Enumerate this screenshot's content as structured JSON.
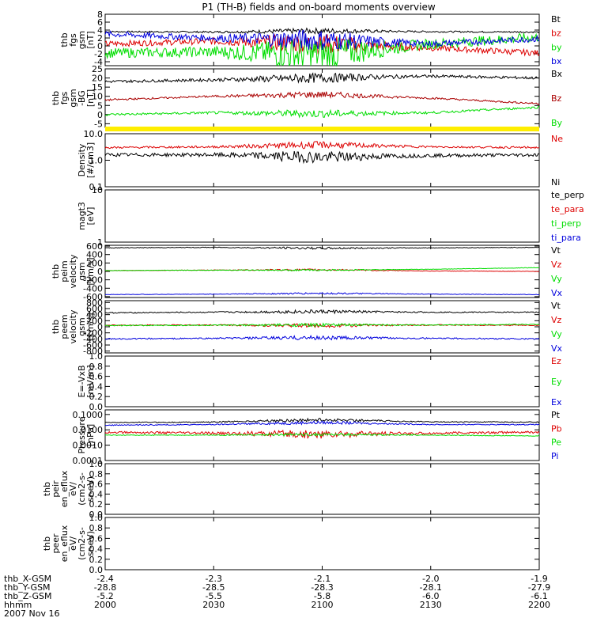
{
  "title": "P1 (TH-B) fields and on-board moments overview",
  "colors": {
    "black": "#000000",
    "red": "#dd0000",
    "darkred": "#aa0000",
    "green": "#00dd00",
    "blue": "#0000dd",
    "yellow": "#ffee00"
  },
  "chart_data": [
    {
      "type": "line",
      "ylabel": [
        "thb",
        "fgs",
        "gsm",
        "[nT]"
      ],
      "ylim": [
        -5,
        8
      ],
      "yscale": "linear",
      "yticks": [
        "8",
        "6",
        "4",
        "2",
        "0",
        "-2",
        "-4"
      ],
      "yticks_values": [
        8,
        6,
        4,
        2,
        0,
        -2,
        -4
      ],
      "series": [
        {
          "name": "Bt",
          "color": "#000000",
          "base": 3.6,
          "amp": 0.4,
          "trend": [
            3.6,
            3.5,
            3.8,
            3.6,
            3.5
          ]
        },
        {
          "name": "bz",
          "color": "#dd0000",
          "base": 0.5,
          "amp": 1.5,
          "trend": [
            0.5,
            1.2,
            0.5,
            -0.5,
            -1.8
          ]
        },
        {
          "name": "by",
          "color": "#00dd00",
          "base": -1.5,
          "amp": 2.5,
          "trend": [
            -1.8,
            -1.5,
            -2.2,
            0.5,
            2.2
          ]
        },
        {
          "name": "bx",
          "color": "#0000dd",
          "base": 2.0,
          "amp": 1.5,
          "trend": [
            3.0,
            2.0,
            1.5,
            0.5,
            1.8
          ]
        }
      ]
    },
    {
      "type": "line",
      "ylabel": [
        "thb",
        "fgs",
        "gsm",
        "-BG",
        "[nT]"
      ],
      "ylim": [
        -7,
        25
      ],
      "yscale": "linear",
      "yticks": [
        "25",
        "20",
        "15",
        "10",
        "5",
        "0",
        "-5"
      ],
      "yticks_values": [
        25,
        20,
        15,
        10,
        5,
        0,
        -5
      ],
      "series": [
        {
          "name": "Bx",
          "color": "#000000",
          "trend": [
            18,
            19,
            20,
            21,
            20
          ],
          "amp": 1.5
        },
        {
          "name": "Bz",
          "color": "#aa0000",
          "trend": [
            8,
            10,
            11,
            9,
            6
          ],
          "amp": 1.0
        },
        {
          "name": "By",
          "color": "#00dd00",
          "trend": [
            0,
            1,
            0.5,
            1,
            4
          ],
          "amp": 1.2
        }
      ]
    },
    {
      "type": "line",
      "ylabel": [
        "Density",
        "[#/cm3]"
      ],
      "ylim": [
        0.1,
        10
      ],
      "yscale": "log",
      "yticks": [
        "10.0",
        "1.0",
        "0.1"
      ],
      "yticks_values": [
        10,
        1,
        0.1
      ],
      "series": [
        {
          "name": "Ne",
          "color": "#dd0000",
          "trend": [
            3.0,
            3.2,
            3.8,
            3.2,
            3.0
          ],
          "amp": 0.15
        },
        {
          "name": "Ni",
          "color": "#000000",
          "trend": [
            1.6,
            1.6,
            1.3,
            1.5,
            1.6
          ],
          "amp": 0.25
        }
      ]
    },
    {
      "type": "line",
      "ylabel": [
        "magt3",
        "[eV]"
      ],
      "ylim": [
        1,
        10
      ],
      "yscale": "log",
      "yticks": [
        "10",
        "1"
      ],
      "yticks_values": [
        10,
        1
      ],
      "series": [
        {
          "name": "te_perp",
          "color": "#000000",
          "values": []
        },
        {
          "name": "te_para",
          "color": "#dd0000",
          "values": []
        },
        {
          "name": "ti_perp",
          "color": "#00dd00",
          "values": []
        },
        {
          "name": "ti_para",
          "color": "#0000dd",
          "values": []
        }
      ]
    },
    {
      "type": "line",
      "ylabel": [
        "thb",
        "peim",
        "velocity",
        "gsm",
        "[km/s]"
      ],
      "ylim": [
        -620,
        620
      ],
      "yscale": "linear",
      "yticks": [
        "600",
        "400",
        "200",
        "0",
        "-200",
        "-400",
        "-600"
      ],
      "yticks_values": [
        600,
        400,
        200,
        0,
        -200,
        -400,
        -600
      ],
      "series": [
        {
          "name": "Vt",
          "color": "#000000",
          "trend": [
            560,
            570,
            550,
            560,
            570
          ],
          "amp": 15
        },
        {
          "name": "Vz",
          "color": "#dd0000",
          "trend": [
            20,
            30,
            40,
            10,
            0
          ],
          "amp": 12
        },
        {
          "name": "Vy",
          "color": "#00dd00",
          "trend": [
            20,
            30,
            30,
            50,
            90
          ],
          "amp": 10
        },
        {
          "name": "Vx",
          "color": "#0000dd",
          "trend": [
            -550,
            -540,
            -520,
            -540,
            -550
          ],
          "amp": 12
        }
      ]
    },
    {
      "type": "line",
      "ylabel": [
        "thb",
        "peem",
        "velocity",
        "gsm",
        "[km/s]"
      ],
      "ylim": [
        -860,
        860
      ],
      "yscale": "linear",
      "yticks": [
        "800",
        "600",
        "400",
        "200",
        "0",
        "-200",
        "-400",
        "-600",
        "-800"
      ],
      "yticks_values": [
        800,
        600,
        400,
        200,
        0,
        -200,
        -400,
        -600,
        -800
      ],
      "series": [
        {
          "name": "Vt",
          "color": "#000000",
          "trend": [
            460,
            480,
            500,
            480,
            480
          ],
          "amp": 35
        },
        {
          "name": "Vz",
          "color": "#dd0000",
          "trend": [
            50,
            60,
            40,
            60,
            50
          ],
          "amp": 35
        },
        {
          "name": "Vy",
          "color": "#00dd00",
          "trend": [
            40,
            50,
            60,
            60,
            80
          ],
          "amp": 30
        },
        {
          "name": "Vx",
          "color": "#0000dd",
          "trend": [
            -400,
            -380,
            -360,
            -380,
            -400
          ],
          "amp": 40
        }
      ]
    },
    {
      "type": "line",
      "ylabel": [
        "E=-VxB",
        "[mV/m]"
      ],
      "ylim": [
        0,
        1.0
      ],
      "yscale": "linear",
      "yticks": [
        "1.0",
        "0.8",
        "0.6",
        "0.4",
        "0.2",
        "0.0"
      ],
      "yticks_values": [
        1.0,
        0.8,
        0.6,
        0.4,
        0.2,
        0.0
      ],
      "series": [
        {
          "name": "Ez",
          "color": "#dd0000",
          "values": []
        },
        {
          "name": "Ey",
          "color": "#00dd00",
          "values": []
        },
        {
          "name": "Ex",
          "color": "#0000dd",
          "values": []
        }
      ]
    },
    {
      "type": "line",
      "ylabel": [
        "Pressure",
        "[nPa]"
      ],
      "ylim": [
        0.0001,
        0.2
      ],
      "yscale": "log",
      "yticks": [
        "0.1000",
        "0.0100",
        "0.0010",
        "0.0001"
      ],
      "yticks_values": [
        0.1,
        0.01,
        0.001,
        0.0001
      ],
      "series": [
        {
          "name": "Pt",
          "color": "#000000",
          "trend": [
            0.03,
            0.032,
            0.045,
            0.033,
            0.032
          ],
          "amp": 0.12
        },
        {
          "name": "Pb",
          "color": "#dd0000",
          "trend": [
            0.007,
            0.006,
            0.005,
            0.006,
            0.007
          ],
          "amp": 0.3
        },
        {
          "name": "Pe",
          "color": "#00dd00",
          "trend": [
            0.0045,
            0.0045,
            0.005,
            0.0045,
            0.004
          ],
          "amp": 0.1
        },
        {
          "name": "Pi",
          "color": "#0000dd",
          "trend": [
            0.02,
            0.022,
            0.03,
            0.022,
            0.022
          ],
          "amp": 0.12
        }
      ]
    },
    {
      "type": "line",
      "ylabel": [
        "thb",
        "peir",
        "en_eflux",
        "eV/",
        "(cm2-s-",
        "sr-eV)"
      ],
      "ylim": [
        0,
        1.0
      ],
      "yscale": "linear",
      "yticks": [
        "1.0",
        "0.8",
        "0.6",
        "0.4",
        "0.2",
        "0.0"
      ],
      "yticks_values": [
        1.0,
        0.8,
        0.6,
        0.4,
        0.2,
        0.0
      ],
      "series": []
    },
    {
      "type": "line",
      "ylabel": [
        "thb",
        "peer",
        "en_eflux",
        "eV/",
        "(cm2-s-",
        "sr-eV)"
      ],
      "ylim": [
        0,
        1.0
      ],
      "yscale": "linear",
      "yticks": [
        "1.0",
        "0.8",
        "0.6",
        "0.4",
        "0.2",
        "0.0"
      ],
      "yticks_values": [
        1.0,
        0.8,
        0.6,
        0.4,
        0.2,
        0.0
      ],
      "series": []
    }
  ],
  "xaxis": {
    "rows": [
      {
        "label": "thb_X-GSM",
        "values": [
          "-2.4",
          "-2.3",
          "-2.1",
          "-2.0",
          "-1.9"
        ]
      },
      {
        "label": "thb_Y-GSM",
        "values": [
          "-28.8",
          "-28.5",
          "-28.3",
          "-28.1",
          "-27.9"
        ]
      },
      {
        "label": "thb_Z-GSM",
        "values": [
          "-5.2",
          "-5.5",
          "-5.8",
          "-6.0",
          "-6.1"
        ]
      },
      {
        "label": "hhmm",
        "values": [
          "2000",
          "2030",
          "2100",
          "2130",
          "2200"
        ]
      }
    ],
    "date": "2007 Nov 16"
  }
}
